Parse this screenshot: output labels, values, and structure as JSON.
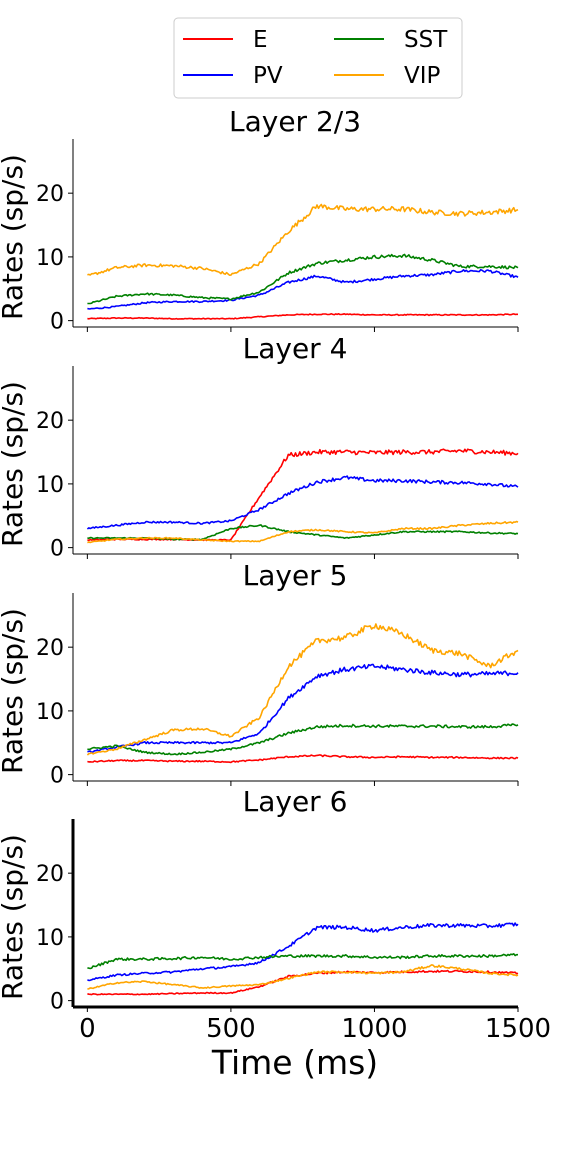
{
  "legend": {
    "entries": [
      {
        "label": "E",
        "color": "#ff0000"
      },
      {
        "label": "PV",
        "color": "#0000ff"
      },
      {
        "label": "SST",
        "color": "#008000"
      },
      {
        "label": "VIP",
        "color": "#ffa500"
      }
    ],
    "position": "top-center"
  },
  "chart_data": [
    {
      "type": "line",
      "title": "Layer 2/3",
      "ylabel": "Rates (sp/s)",
      "xlabel": "",
      "xlim": [
        -50,
        1500
      ],
      "ylim": [
        -1,
        28.5
      ],
      "yticks": [
        0,
        10,
        20
      ],
      "x": [
        0,
        100,
        200,
        300,
        400,
        500,
        600,
        700,
        800,
        900,
        1000,
        1100,
        1200,
        1300,
        1400,
        1500
      ],
      "series": [
        {
          "name": "E",
          "color": "#ff0000",
          "values": [
            0.3,
            0.4,
            0.4,
            0.3,
            0.3,
            0.3,
            0.6,
            0.9,
            1.0,
            1.0,
            0.9,
            0.9,
            0.9,
            0.9,
            0.9,
            1.0
          ]
        },
        {
          "name": "PV",
          "color": "#0000ff",
          "values": [
            1.8,
            2.2,
            2.8,
            3.0,
            3.0,
            3.2,
            4.0,
            6.0,
            7.0,
            6.0,
            6.5,
            7.0,
            7.2,
            7.8,
            7.8,
            6.8
          ]
        },
        {
          "name": "SST",
          "color": "#008000",
          "values": [
            2.6,
            3.8,
            4.2,
            4.0,
            3.6,
            3.4,
            4.5,
            7.5,
            9.0,
            9.5,
            10.0,
            10.2,
            9.5,
            8.5,
            8.5,
            8.3
          ]
        },
        {
          "name": "VIP",
          "color": "#ffa500",
          "values": [
            7.0,
            8.3,
            8.7,
            8.6,
            8.2,
            7.2,
            9.0,
            14.0,
            18.0,
            17.5,
            17.5,
            17.5,
            17.0,
            16.8,
            17.0,
            17.4
          ]
        }
      ]
    },
    {
      "type": "line",
      "title": "Layer 4",
      "ylabel": "Rates (sp/s)",
      "xlabel": "",
      "xlim": [
        -50,
        1500
      ],
      "ylim": [
        -1,
        28.5
      ],
      "yticks": [
        0,
        10,
        20
      ],
      "x": [
        0,
        100,
        200,
        300,
        400,
        500,
        600,
        700,
        800,
        900,
        1000,
        1100,
        1200,
        1300,
        1400,
        1500
      ],
      "series": [
        {
          "name": "E",
          "color": "#ff0000",
          "values": [
            1.2,
            1.3,
            1.3,
            1.3,
            1.2,
            1.2,
            8.0,
            14.5,
            15.0,
            15.0,
            14.9,
            15.0,
            15.0,
            15.2,
            15.0,
            14.8
          ]
        },
        {
          "name": "PV",
          "color": "#0000ff",
          "values": [
            3.0,
            3.5,
            4.0,
            4.0,
            3.8,
            4.2,
            6.0,
            8.5,
            10.3,
            11.0,
            10.5,
            10.5,
            10.3,
            10.2,
            10.0,
            9.5
          ]
        },
        {
          "name": "SST",
          "color": "#008000",
          "values": [
            1.5,
            1.5,
            1.5,
            1.3,
            1.3,
            3.0,
            3.5,
            2.5,
            2.0,
            1.5,
            2.0,
            2.5,
            2.5,
            2.5,
            2.3,
            2.2
          ]
        },
        {
          "name": "VIP",
          "color": "#ffa500",
          "values": [
            0.8,
            1.3,
            1.5,
            1.5,
            1.2,
            1.0,
            1.0,
            2.5,
            2.8,
            2.5,
            2.3,
            3.0,
            3.0,
            3.5,
            3.8,
            4.0
          ]
        }
      ]
    },
    {
      "type": "line",
      "title": "Layer 5",
      "ylabel": "Rates (sp/s)",
      "xlabel": "",
      "xlim": [
        -50,
        1500
      ],
      "ylim": [
        -1,
        28.5
      ],
      "yticks": [
        0,
        10,
        20
      ],
      "x": [
        0,
        100,
        200,
        300,
        400,
        500,
        600,
        700,
        800,
        900,
        1000,
        1100,
        1200,
        1300,
        1400,
        1500
      ],
      "series": [
        {
          "name": "E",
          "color": "#ff0000",
          "values": [
            2.0,
            2.2,
            2.2,
            2.1,
            2.1,
            2.0,
            2.3,
            2.8,
            3.0,
            2.8,
            2.7,
            2.8,
            2.7,
            2.7,
            2.6,
            2.6
          ]
        },
        {
          "name": "PV",
          "color": "#0000ff",
          "values": [
            3.5,
            4.3,
            5.0,
            5.0,
            5.0,
            5.0,
            6.5,
            12.0,
            15.5,
            16.5,
            17.0,
            16.5,
            16.0,
            15.7,
            15.8,
            16.0
          ]
        },
        {
          "name": "SST",
          "color": "#008000",
          "values": [
            4.0,
            4.5,
            3.5,
            3.2,
            3.5,
            4.0,
            5.0,
            6.5,
            7.5,
            7.7,
            7.6,
            7.6,
            7.6,
            7.5,
            7.5,
            7.8
          ]
        },
        {
          "name": "VIP",
          "color": "#ffa500",
          "values": [
            3.2,
            4.0,
            5.5,
            7.0,
            7.2,
            6.0,
            9.0,
            17.0,
            21.0,
            21.5,
            23.5,
            22.0,
            19.5,
            19.0,
            17.0,
            19.5
          ]
        }
      ]
    },
    {
      "type": "line",
      "title": "Layer 6",
      "ylabel": "Rates (sp/s)",
      "xlabel": "Time (ms)",
      "xlim": [
        -50,
        1500
      ],
      "ylim": [
        -1,
        28.5
      ],
      "yticks": [
        0,
        10,
        20
      ],
      "xticks": [
        0,
        500,
        1000,
        1500
      ],
      "x": [
        0,
        100,
        200,
        300,
        400,
        500,
        600,
        700,
        800,
        900,
        1000,
        1100,
        1200,
        1300,
        1400,
        1500
      ],
      "series": [
        {
          "name": "E",
          "color": "#ff0000",
          "values": [
            1.0,
            1.0,
            1.0,
            1.1,
            1.2,
            1.2,
            2.2,
            3.8,
            4.3,
            4.5,
            4.4,
            4.5,
            4.6,
            4.6,
            4.5,
            4.3
          ]
        },
        {
          "name": "PV",
          "color": "#0000ff",
          "values": [
            3.2,
            4.0,
            4.3,
            4.5,
            5.0,
            5.3,
            6.0,
            8.5,
            11.5,
            11.5,
            11.0,
            11.5,
            11.8,
            11.8,
            11.7,
            12.0
          ]
        },
        {
          "name": "SST",
          "color": "#008000",
          "values": [
            5.0,
            6.5,
            6.5,
            6.6,
            6.8,
            6.5,
            6.8,
            7.0,
            7.0,
            7.0,
            6.8,
            6.8,
            7.0,
            7.0,
            7.0,
            7.2
          ]
        },
        {
          "name": "VIP",
          "color": "#ffa500",
          "values": [
            1.8,
            2.8,
            3.0,
            2.5,
            2.0,
            2.3,
            2.5,
            3.5,
            4.5,
            4.5,
            4.3,
            4.5,
            5.5,
            5.0,
            4.3,
            4.0
          ]
        }
      ]
    }
  ]
}
